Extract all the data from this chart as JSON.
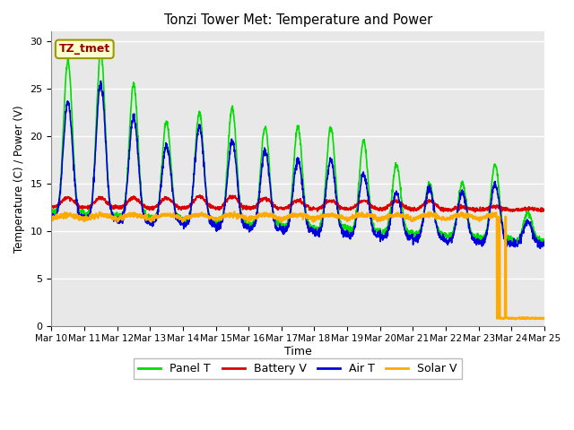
{
  "title": "Tonzi Tower Met: Temperature and Power",
  "xlabel": "Time",
  "ylabel": "Temperature (C) / Power (V)",
  "annotation": "TZ_tmet",
  "ylim": [
    0,
    31
  ],
  "yticks": [
    0,
    5,
    10,
    15,
    20,
    25,
    30
  ],
  "plot_bg_color": "#e8e8e8",
  "fig_bg_color": "#ffffff",
  "grid_color": "#ffffff",
  "series": {
    "panel_t": {
      "label": "Panel T",
      "color": "#00dd00",
      "lw": 1.2
    },
    "battery_v": {
      "label": "Battery V",
      "color": "#dd0000",
      "lw": 1.2
    },
    "air_t": {
      "label": "Air T",
      "color": "#0000dd",
      "lw": 1.2
    },
    "solar_v": {
      "label": "Solar V",
      "color": "#ffaa00",
      "lw": 1.5
    }
  },
  "n_days": 15,
  "start_day": 10
}
